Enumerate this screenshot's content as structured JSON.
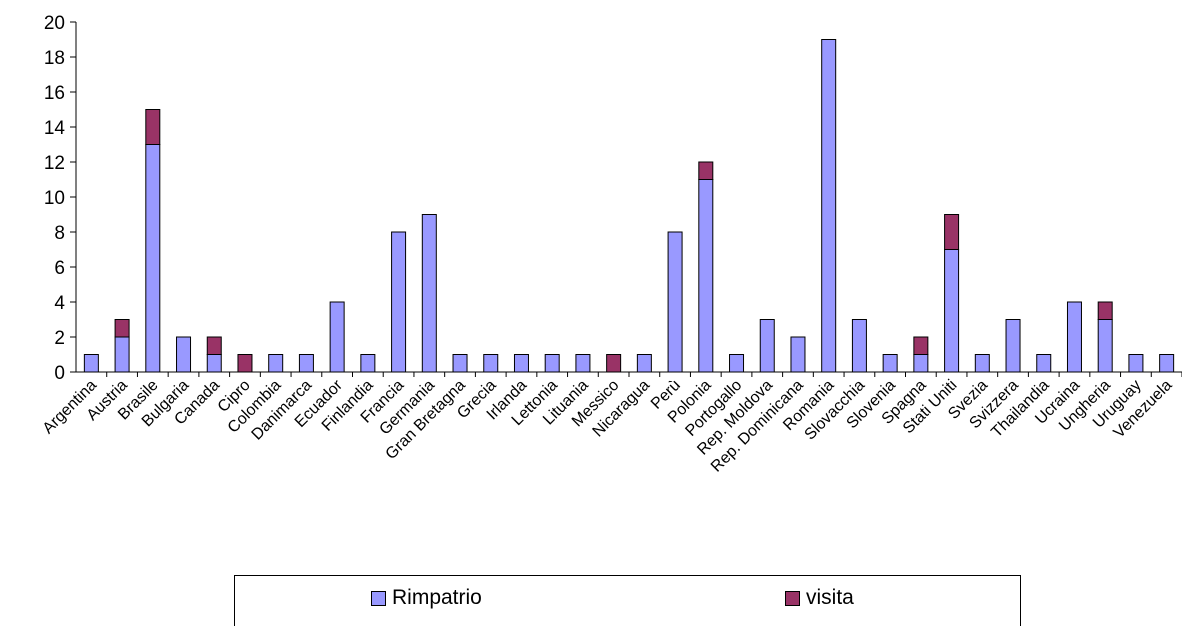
{
  "chart_data": {
    "type": "bar",
    "stacked": true,
    "categories": [
      "Argentina",
      "Austria",
      "Brasile",
      "Bulgaria",
      "Canada",
      "Cipro",
      "Colombia",
      "Danimarca",
      "Ecuador",
      "Finlandia",
      "Francia",
      "Germania",
      "Gran Bretagna",
      "Grecia",
      "Irlanda",
      "Lettonia",
      "Lituania",
      "Messico",
      "Nicaragua",
      "Perù",
      "Polonia",
      "Portogallo",
      "Rep. Moldova",
      "Rep. Dominicana",
      "Romania",
      "Slovacchia",
      "Slovenia",
      "Spagna",
      "Stati Uniti",
      "Svezia",
      "Svizzera",
      "Thailandia",
      "Ucraina",
      "Ungheria",
      "Uruguay",
      "Venezuela"
    ],
    "series": [
      {
        "name": "Rimpatrio",
        "color": "#9999ff",
        "values": [
          1,
          2,
          13,
          2,
          1,
          0,
          1,
          1,
          4,
          1,
          8,
          9,
          1,
          1,
          1,
          1,
          1,
          0,
          1,
          8,
          11,
          1,
          3,
          2,
          19,
          3,
          1,
          1,
          7,
          1,
          3,
          1,
          4,
          3,
          1,
          1
        ]
      },
      {
        "name": "visita",
        "color": "#993366",
        "values": [
          0,
          1,
          2,
          0,
          1,
          1,
          0,
          0,
          0,
          0,
          0,
          0,
          0,
          0,
          0,
          0,
          0,
          1,
          0,
          0,
          1,
          0,
          0,
          0,
          0,
          0,
          0,
          1,
          2,
          0,
          0,
          0,
          0,
          1,
          0,
          0
        ]
      }
    ],
    "ylim": [
      0,
      20
    ],
    "yticks": [
      0,
      2,
      4,
      6,
      8,
      10,
      12,
      14,
      16,
      18,
      20
    ],
    "grid": false,
    "legend_position": "bottom"
  }
}
